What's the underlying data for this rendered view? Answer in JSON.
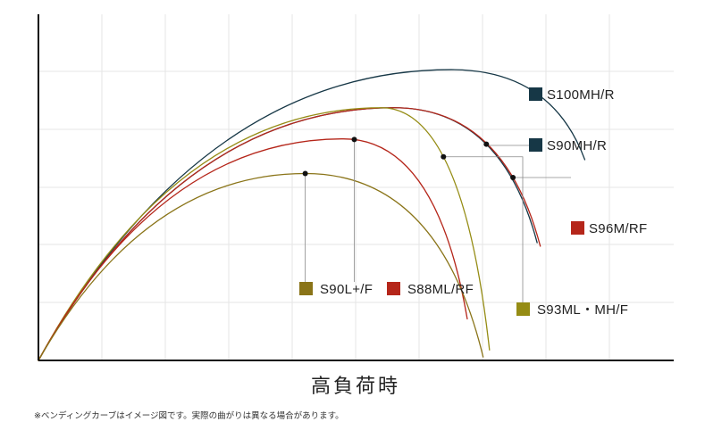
{
  "chart_data": {
    "type": "line",
    "title": "",
    "xlabel": "高負荷時",
    "ylabel": "",
    "grid": true,
    "xlim": [
      0,
      100
    ],
    "ylim": [
      0,
      100
    ],
    "series": [
      {
        "name": "S100MH/R",
        "color": "#163746",
        "peak_x": 65,
        "peak_y": 84,
        "end_x": 86,
        "end_y": 58,
        "marker_t": 0.48
      },
      {
        "name": "S90MH/R",
        "color": "#163746",
        "peak_x": 56,
        "peak_y": 73,
        "end_x": 78.5,
        "end_y": 34,
        "marker_t": 0.52
      },
      {
        "name": "S96M/RF",
        "color": "#b5261a",
        "peak_x": 56,
        "peak_y": 73,
        "end_x": 79,
        "end_y": 33,
        "marker_t": 0.71
      },
      {
        "name": "S93ML・MH/F",
        "color": "#958c14",
        "peak_x": 54,
        "peak_y": 73,
        "end_x": 71,
        "end_y": 3,
        "marker_t": 0.45
      },
      {
        "name": "S88ML/RF",
        "color": "#b5261a",
        "peak_x": 48,
        "peak_y": 64,
        "end_x": 67.5,
        "end_y": 12,
        "marker_t": 0.06
      },
      {
        "name": "S90L+/F",
        "color": "#8a7418",
        "peak_x": 42,
        "peak_y": 54,
        "end_x": 70,
        "end_y": 1,
        "marker_t": 0.0
      }
    ]
  },
  "footnote": "※ベンディングカーブはイメージ図です。実際の曲がりは異なる場合があります。"
}
